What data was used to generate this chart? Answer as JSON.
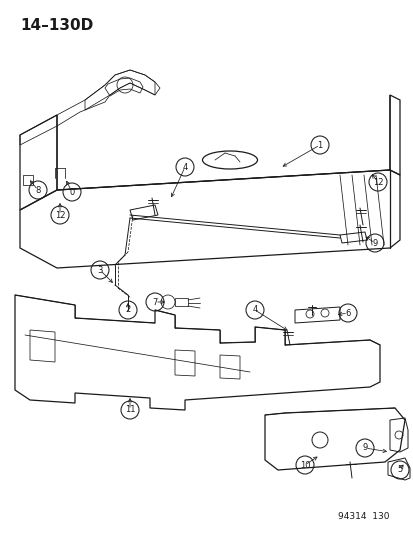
{
  "title": "14–130D",
  "watermark": "94314  130",
  "bg_color": "#ffffff",
  "line_color": "#1a1a1a",
  "title_fontsize": 11,
  "watermark_fontsize": 6.5
}
